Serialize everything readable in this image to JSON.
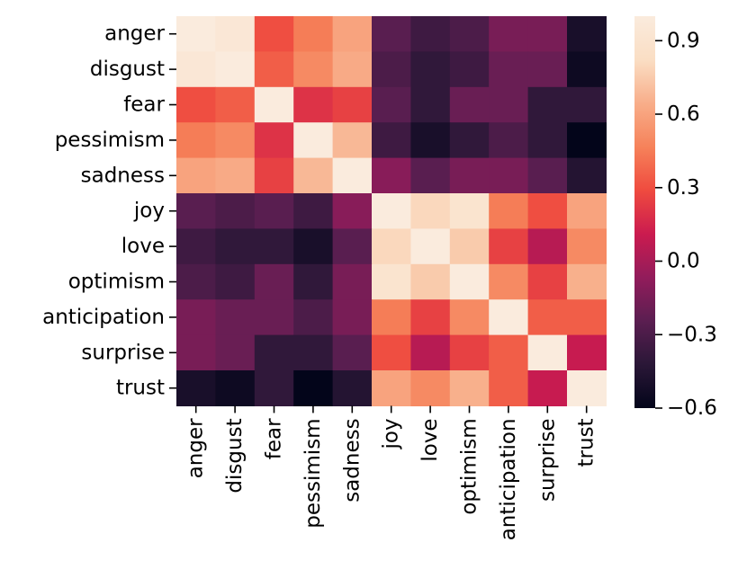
{
  "chart_data": {
    "type": "heatmap",
    "title": "",
    "xlabel": "",
    "ylabel": "",
    "labels": [
      "anger",
      "disgust",
      "fear",
      "pessimism",
      "sadness",
      "joy",
      "love",
      "optimism",
      "anticipation",
      "surprise",
      "trust"
    ],
    "matrix": [
      [
        1.0,
        0.95,
        0.3,
        0.45,
        0.6,
        -0.25,
        -0.35,
        -0.3,
        -0.15,
        -0.15,
        -0.5
      ],
      [
        0.95,
        1.0,
        0.35,
        0.5,
        0.63,
        -0.3,
        -0.4,
        -0.35,
        -0.2,
        -0.2,
        -0.55
      ],
      [
        0.3,
        0.35,
        1.0,
        0.2,
        0.25,
        -0.25,
        -0.4,
        -0.2,
        -0.2,
        -0.4,
        -0.4
      ],
      [
        0.45,
        0.5,
        0.2,
        1.0,
        0.68,
        -0.35,
        -0.5,
        -0.4,
        -0.3,
        -0.4,
        -0.6
      ],
      [
        0.6,
        0.63,
        0.25,
        0.68,
        1.0,
        -0.1,
        -0.25,
        -0.15,
        -0.15,
        -0.25,
        -0.45
      ],
      [
        -0.25,
        -0.3,
        -0.25,
        -0.35,
        -0.1,
        1.0,
        0.8,
        0.9,
        0.45,
        0.3,
        0.6
      ],
      [
        -0.35,
        -0.4,
        -0.4,
        -0.5,
        -0.25,
        0.8,
        1.0,
        0.75,
        0.25,
        0.05,
        0.5
      ],
      [
        -0.3,
        -0.35,
        -0.2,
        -0.4,
        -0.15,
        0.9,
        0.75,
        1.0,
        0.5,
        0.25,
        0.65
      ],
      [
        -0.15,
        -0.2,
        -0.2,
        -0.3,
        -0.15,
        0.45,
        0.25,
        0.5,
        1.0,
        0.35,
        0.35
      ],
      [
        -0.15,
        -0.2,
        -0.4,
        -0.4,
        -0.25,
        0.3,
        0.05,
        0.25,
        0.35,
        1.0,
        0.1
      ],
      [
        -0.5,
        -0.55,
        -0.4,
        -0.6,
        -0.45,
        0.6,
        0.5,
        0.65,
        0.35,
        0.1,
        1.0
      ]
    ],
    "colorbar": {
      "min": -0.6,
      "max": 1.0,
      "ticks": [
        0.9,
        0.6,
        0.3,
        0.0,
        -0.3,
        -0.6
      ],
      "tick_labels": [
        "0.9",
        "0.6",
        "0.3",
        "0.0",
        "−0.3",
        "−0.6"
      ],
      "colormap": "rocket",
      "colormap_stops": [
        "#03051a",
        "#2a1737",
        "#5b1e51",
        "#921c5b",
        "#cb1b4f",
        "#ef4b3f",
        "#f6825a",
        "#f8ae8a",
        "#fadec4",
        "#faebdd"
      ]
    },
    "grid": false,
    "legend": "none"
  }
}
